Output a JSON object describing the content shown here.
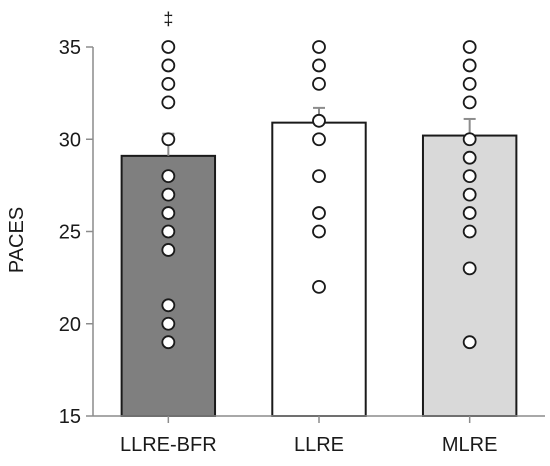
{
  "chart_data": {
    "type": "bar",
    "title": "",
    "xlabel": "",
    "ylabel": "PACES",
    "ylim": [
      15,
      35
    ],
    "yticks": [
      15,
      20,
      25,
      30,
      35
    ],
    "grid": false,
    "categories": [
      "LLRE-BFR",
      "LLRE",
      "MLRE"
    ],
    "values": [
      29.1,
      30.9,
      30.2
    ],
    "errors": [
      1.2,
      0.8,
      0.9
    ],
    "bar_colors": [
      "#7f7f7f",
      "#ffffff",
      "#d9d9d9"
    ],
    "bar_edge_color": "#1a1a1a",
    "error_color": "#8c8c8c",
    "individual_points": [
      [
        35,
        34,
        33,
        32,
        30,
        28,
        27,
        26,
        25,
        24,
        21,
        20,
        19
      ],
      [
        35,
        34,
        33,
        31,
        30,
        28,
        26,
        25,
        22
      ],
      [
        35,
        34,
        33,
        32,
        30,
        29,
        28,
        27,
        26,
        25,
        23,
        19
      ]
    ],
    "annotations": [
      {
        "category": "LLRE-BFR",
        "text": "‡"
      }
    ]
  }
}
